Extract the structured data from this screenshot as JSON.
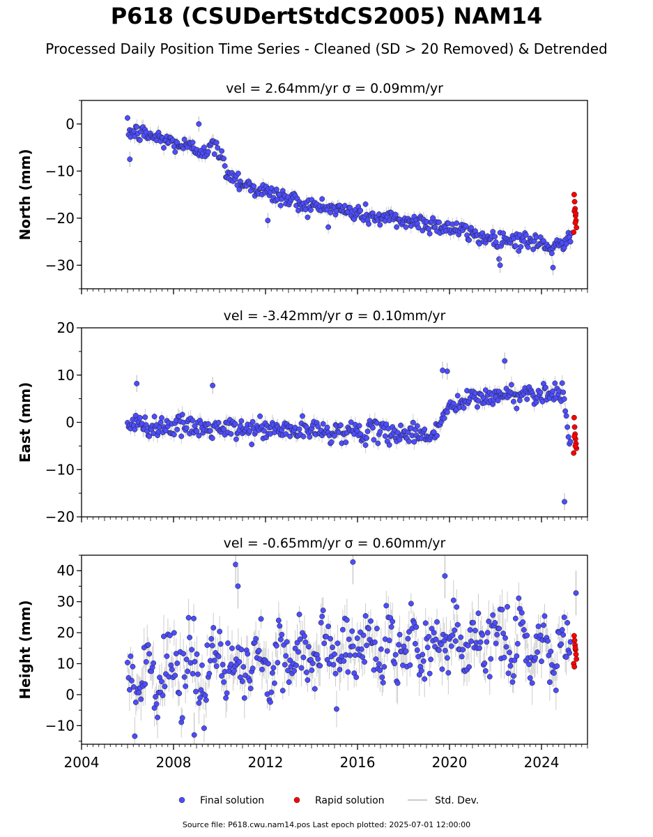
{
  "header": {
    "title": "P618 (CSUDertStdCS2005) NAM14",
    "subtitle": "Processed Daily Position Time Series - Cleaned (SD > 20 Removed) & Detrended"
  },
  "footer": {
    "source_text": "Source file: P618.cwu.nam14.pos  Last epoch plotted: 2025-07-01 12:00:00"
  },
  "legend": {
    "placement": "bottom-center",
    "items": [
      {
        "label": "Final solution",
        "color": "#4d4dff",
        "marker": "circle"
      },
      {
        "label": "Rapid solution",
        "color": "#ff0000",
        "marker": "circle"
      },
      {
        "label": "Std. Dev.",
        "color": "#cccccc",
        "marker": "line"
      }
    ]
  },
  "chart_data": [
    {
      "type": "scatter",
      "title": "vel = 2.64mm/yr   σ = 0.09mm/yr",
      "ylabel": "North (mm)",
      "xlim": [
        2004.0,
        2026.0
      ],
      "ylim": [
        -35,
        5
      ],
      "yticks": [
        0,
        -10,
        -20,
        -30
      ],
      "ytick_labels": [
        "0",
        "−10",
        "−20",
        "−30"
      ],
      "grid": false,
      "series": [
        {
          "name": "Final solution",
          "color": "#4d4dff",
          "trend": {
            "x": [
              2006.0,
              2007.0,
              2008.0,
              2009.0,
              2009.9,
              2010.3,
              2011.0,
              2012.0,
              2013.0,
              2014.0,
              2015.0,
              2016.0,
              2017.0,
              2018.0,
              2019.0,
              2020.0,
              2021.0,
              2022.0,
              2023.0,
              2024.0,
              2025.0,
              2025.35
            ],
            "y": [
              -1.5,
              -2.5,
              -4.0,
              -5.5,
              -5.0,
              -10.0,
              -12.5,
              -14.5,
              -16.0,
              -17.5,
              -18.0,
              -19.0,
              -20.0,
              -20.5,
              -21.0,
              -22.0,
              -23.5,
              -24.5,
              -24.5,
              -25.5,
              -26.5,
              -22.0
            ]
          },
          "outliers": {
            "x": [
              2006.1,
              2012.1,
              2009.1,
              2022.2,
              2024.5
            ],
            "y": [
              -7.5,
              -20.5,
              0.0,
              -30.0,
              -30.5
            ]
          }
        },
        {
          "name": "Rapid solution",
          "color": "#ff0000",
          "x": [
            2025.42,
            2025.44,
            2025.46,
            2025.48,
            2025.5,
            2025.52,
            2025.4,
            2025.43,
            2025.47,
            2025.49
          ],
          "y": [
            -15.0,
            -16.5,
            -18.0,
            -19.5,
            -20.5,
            -22.0,
            -23.0,
            -18.5,
            -21.0,
            -19.0
          ]
        }
      ]
    },
    {
      "type": "scatter",
      "title": "vel = -3.42mm/yr   σ = 0.10mm/yr",
      "ylabel": "East (mm)",
      "xlim": [
        2004.0,
        2026.0
      ],
      "ylim": [
        -20,
        20
      ],
      "yticks": [
        20,
        10,
        0,
        -10,
        -20
      ],
      "ytick_labels": [
        "20",
        "10",
        "0",
        "−10",
        "−20"
      ],
      "grid": false,
      "series": [
        {
          "name": "Final solution",
          "color": "#4d4dff",
          "trend": {
            "x": [
              2006.0,
              2008.0,
              2010.0,
              2012.0,
              2014.0,
              2016.0,
              2018.0,
              2019.4,
              2019.7,
              2020.0,
              2021.0,
              2022.0,
              2023.0,
              2024.0,
              2024.9,
              2025.3
            ],
            "y": [
              -0.5,
              -0.8,
              -1.5,
              -1.5,
              -1.8,
              -2.0,
              -2.3,
              -2.5,
              1.5,
              3.0,
              5.0,
              5.5,
              6.0,
              6.2,
              6.5,
              -5.0
            ]
          },
          "outliers": {
            "x": [
              2006.4,
              2009.7,
              2025.0,
              2019.7,
              2019.9,
              2022.4
            ],
            "y": [
              8.2,
              7.8,
              -16.8,
              11.0,
              10.8,
              13.0
            ]
          }
        },
        {
          "name": "Rapid solution",
          "color": "#ff0000",
          "x": [
            2025.42,
            2025.44,
            2025.46,
            2025.48,
            2025.5,
            2025.52,
            2025.4,
            2025.43,
            2025.47
          ],
          "y": [
            1.0,
            -1.0,
            -2.5,
            -3.5,
            -4.5,
            -5.5,
            -6.5,
            -3.0,
            -5.0
          ]
        }
      ]
    },
    {
      "type": "scatter",
      "title": "vel = -0.65mm/yr   σ = 0.60mm/yr",
      "ylabel": "Height (mm)",
      "xlabel": "",
      "xlim": [
        2004.0,
        2026.0
      ],
      "ylim": [
        -16,
        45
      ],
      "yticks": [
        40,
        30,
        20,
        10,
        0,
        -10
      ],
      "ytick_labels": [
        "40",
        "30",
        "20",
        "10",
        "0",
        "−10"
      ],
      "xticks": [
        2004,
        2008,
        2012,
        2016,
        2020,
        2024
      ],
      "xtick_labels": [
        "2004",
        "2008",
        "2012",
        "2016",
        "2020",
        "2024"
      ],
      "grid": false,
      "series": [
        {
          "name": "Final solution",
          "color": "#4d4dff",
          "trend": {
            "x": [
              2006.0,
              2008.0,
              2010.0,
              2012.0,
              2014.0,
              2016.0,
              2018.0,
              2020.0,
              2022.0,
              2024.0,
              2025.3
            ],
            "y": [
              5.0,
              6.0,
              8.0,
              11.0,
              13.0,
              15.0,
              15.0,
              16.0,
              17.0,
              16.0,
              15.0
            ]
          },
          "outliers": {
            "x": [
              2010.7,
              2010.8,
              2015.8,
              2019.8,
              2008.9,
              2025.5
            ],
            "y": [
              42.0,
              35.0,
              42.8,
              38.3,
              -13.0,
              32.8
            ]
          }
        },
        {
          "name": "Rapid solution",
          "color": "#ff0000",
          "x": [
            2025.42,
            2025.44,
            2025.46,
            2025.48,
            2025.5,
            2025.52,
            2025.4,
            2025.43,
            2025.47
          ],
          "y": [
            19.0,
            17.5,
            16.0,
            14.5,
            13.0,
            11.5,
            10.0,
            9.0,
            15.0
          ]
        }
      ]
    }
  ]
}
